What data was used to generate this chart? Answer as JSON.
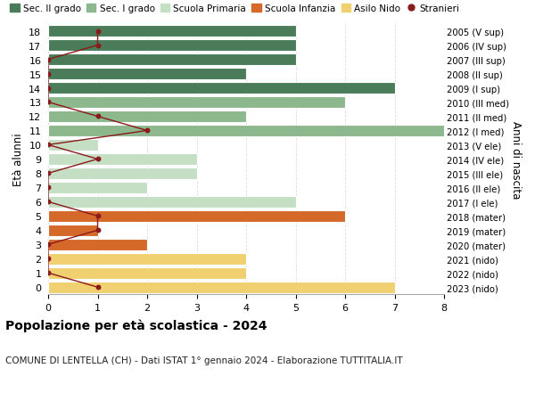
{
  "ages": [
    18,
    17,
    16,
    15,
    14,
    13,
    12,
    11,
    10,
    9,
    8,
    7,
    6,
    5,
    4,
    3,
    2,
    1,
    0
  ],
  "years": [
    "2005 (V sup)",
    "2006 (IV sup)",
    "2007 (III sup)",
    "2008 (II sup)",
    "2009 (I sup)",
    "2010 (III med)",
    "2011 (II med)",
    "2012 (I med)",
    "2013 (V ele)",
    "2014 (IV ele)",
    "2015 (III ele)",
    "2016 (II ele)",
    "2017 (I ele)",
    "2018 (mater)",
    "2019 (mater)",
    "2020 (mater)",
    "2021 (nido)",
    "2022 (nido)",
    "2023 (nido)"
  ],
  "bar_values": [
    5,
    5,
    5,
    4,
    7,
    6,
    4,
    8,
    1,
    3,
    3,
    2,
    5,
    6,
    1,
    2,
    4,
    4,
    7
  ],
  "bar_colors": [
    "#4a7c59",
    "#4a7c59",
    "#4a7c59",
    "#4a7c59",
    "#4a7c59",
    "#8db88d",
    "#8db88d",
    "#8db88d",
    "#c5dfc5",
    "#c5dfc5",
    "#c5dfc5",
    "#c5dfc5",
    "#c5dfc5",
    "#d4692a",
    "#d4692a",
    "#d4692a",
    "#f0d070",
    "#f0d070",
    "#f0d070"
  ],
  "stranieri_values": [
    1,
    1,
    0,
    0,
    0,
    0,
    1,
    2,
    0,
    1,
    0,
    0,
    0,
    1,
    1,
    0,
    0,
    0,
    1
  ],
  "stranieri_color": "#8b1a1a",
  "legend_labels": [
    "Sec. II grado",
    "Sec. I grado",
    "Scuola Primaria",
    "Scuola Infanzia",
    "Asilo Nido",
    "Stranieri"
  ],
  "legend_colors": [
    "#4a7c59",
    "#8db88d",
    "#c5dfc5",
    "#d4692a",
    "#f0d070",
    "#8b1a1a"
  ],
  "title": "Popolazione per età scolastica - 2024",
  "subtitle": "COMUNE DI LENTELLA (CH) - Dati ISTAT 1° gennaio 2024 - Elaborazione TUTTITALIA.IT",
  "ylabel_left": "Età alunni",
  "ylabel_right": "Anni di nascita",
  "xlim": [
    0,
    8
  ],
  "background_color": "#ffffff",
  "grid_color": "#dddddd"
}
